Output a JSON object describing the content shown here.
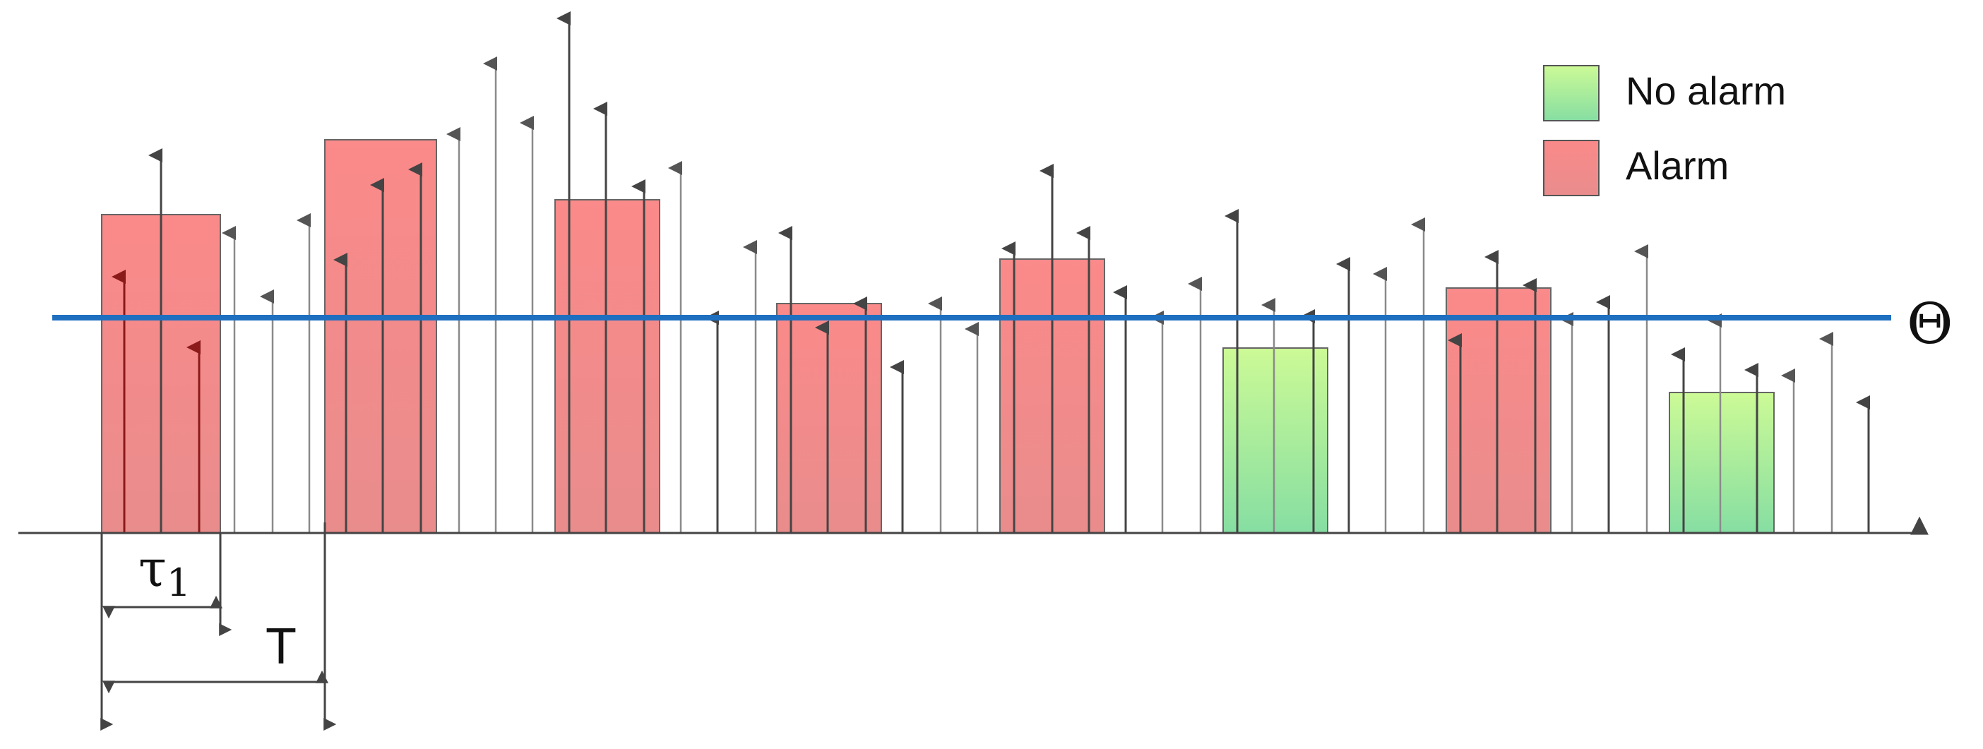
{
  "labels": {
    "threshold": "Θ",
    "tau_main": "τ",
    "tau_sub": "1",
    "period": "T"
  },
  "legend": {
    "items": [
      {
        "label": "No alarm",
        "key": "no_alarm"
      },
      {
        "label": "Alarm",
        "key": "alarm"
      }
    ]
  },
  "colors": {
    "alarm_top": "#fb8a8a",
    "alarm_bottom": "#e98c8c",
    "no_alarm_top": "#ccfa96",
    "no_alarm_bottom": "#86dea2",
    "threshold_line": "#1f6fc0",
    "arrow_dark": "#444444",
    "arrow_gray": "#8a8a8a",
    "arrow_red": "#8b1a1a",
    "axis": "#444444"
  },
  "diagram": {
    "threshold_level": 0.62,
    "windows": [
      {
        "index": 1,
        "status": "alarm"
      },
      {
        "index": 2,
        "status": "alarm"
      },
      {
        "index": 3,
        "status": "alarm"
      },
      {
        "index": 4,
        "status": "alarm"
      },
      {
        "index": 5,
        "status": "alarm"
      },
      {
        "index": 6,
        "status": "no_alarm"
      },
      {
        "index": 7,
        "status": "alarm"
      },
      {
        "index": 8,
        "status": "no_alarm"
      }
    ]
  }
}
